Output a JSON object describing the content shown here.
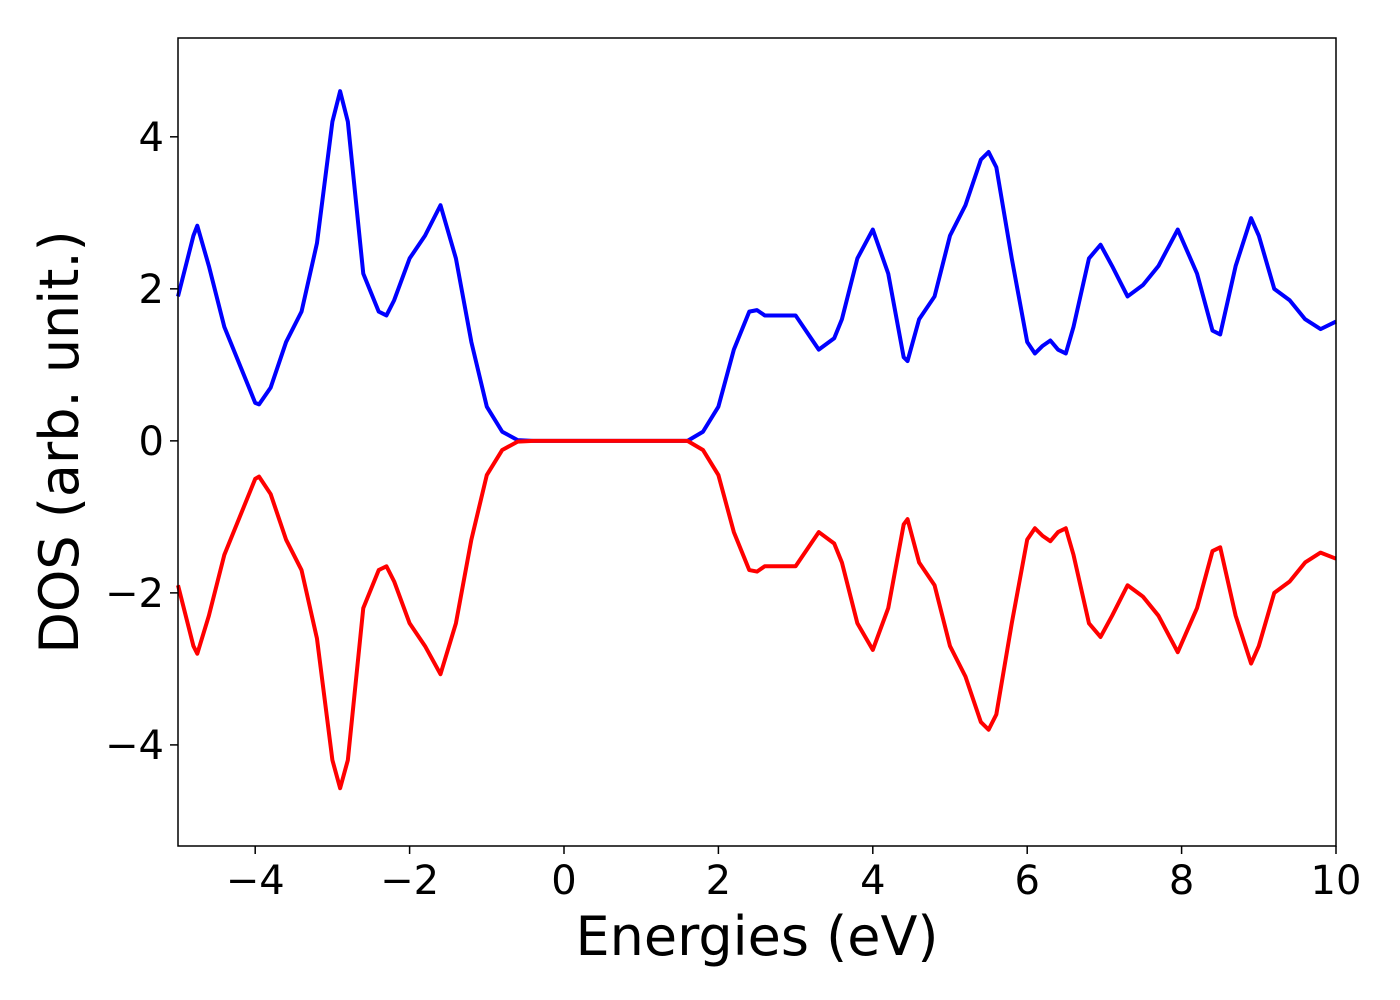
{
  "chart_data": {
    "type": "line",
    "x_label": "Energies (eV)",
    "y_label": "DOS (arb. unit.)",
    "x": [
      -5,
      -4.8,
      -4.75,
      -4.6,
      -4.4,
      -4.2,
      -4.0,
      -3.95,
      -3.8,
      -3.6,
      -3.4,
      -3.2,
      -3.0,
      -2.9,
      -2.8,
      -2.6,
      -2.4,
      -2.3,
      -2.2,
      -2.0,
      -1.8,
      -1.6,
      -1.4,
      -1.2,
      -1.0,
      -0.8,
      -0.6,
      -0.4,
      0,
      0.4,
      0.8,
      1.2,
      1.6,
      1.8,
      2.0,
      2.2,
      2.4,
      2.5,
      2.6,
      2.8,
      3.0,
      3.2,
      3.3,
      3.5,
      3.6,
      3.8,
      4.0,
      4.2,
      4.4,
      4.45,
      4.6,
      4.8,
      5.0,
      5.2,
      5.4,
      5.5,
      5.6,
      5.8,
      6.0,
      6.1,
      6.2,
      6.3,
      6.4,
      6.5,
      6.6,
      6.8,
      6.95,
      7.1,
      7.3,
      7.5,
      7.7,
      7.95,
      8.2,
      8.4,
      8.5,
      8.7,
      8.9,
      9.0,
      9.2,
      9.4,
      9.6,
      9.8,
      10
    ],
    "series": [
      {
        "color": "#0000ff",
        "values": [
          1.9,
          2.7,
          2.83,
          2.3,
          1.5,
          1.0,
          0.5,
          0.48,
          0.7,
          1.3,
          1.7,
          2.6,
          4.2,
          4.6,
          4.2,
          2.2,
          1.7,
          1.65,
          1.85,
          2.4,
          2.7,
          3.1,
          2.4,
          1.3,
          0.45,
          0.12,
          0.01,
          0,
          0,
          0,
          0,
          0,
          0,
          0.12,
          0.45,
          1.2,
          1.7,
          1.72,
          1.65,
          1.65,
          1.65,
          1.35,
          1.2,
          1.35,
          1.6,
          2.4,
          2.78,
          2.2,
          1.1,
          1.05,
          1.6,
          1.9,
          2.7,
          3.1,
          3.7,
          3.8,
          3.6,
          2.4,
          1.3,
          1.15,
          1.25,
          1.32,
          1.2,
          1.15,
          1.5,
          2.4,
          2.58,
          2.3,
          1.9,
          2.05,
          2.3,
          2.78,
          2.2,
          1.45,
          1.4,
          2.3,
          2.93,
          2.7,
          2.0,
          1.85,
          1.6,
          1.47,
          1.57
        ]
      },
      {
        "color": "#ff0000",
        "values": [
          -1.9,
          -2.7,
          -2.8,
          -2.3,
          -1.5,
          -1.0,
          -0.5,
          -0.47,
          -0.7,
          -1.3,
          -1.7,
          -2.6,
          -4.2,
          -4.57,
          -4.2,
          -2.2,
          -1.7,
          -1.65,
          -1.85,
          -2.4,
          -2.7,
          -3.07,
          -2.4,
          -1.3,
          -0.45,
          -0.12,
          -0.01,
          0,
          0,
          0,
          0,
          0,
          0,
          -0.12,
          -0.45,
          -1.2,
          -1.7,
          -1.72,
          -1.65,
          -1.65,
          -1.65,
          -1.35,
          -1.2,
          -1.35,
          -1.6,
          -2.4,
          -2.75,
          -2.2,
          -1.1,
          -1.03,
          -1.6,
          -1.9,
          -2.7,
          -3.1,
          -3.7,
          -3.8,
          -3.6,
          -2.4,
          -1.3,
          -1.15,
          -1.25,
          -1.32,
          -1.2,
          -1.15,
          -1.5,
          -2.4,
          -2.58,
          -2.3,
          -1.9,
          -2.05,
          -2.3,
          -2.78,
          -2.2,
          -1.45,
          -1.4,
          -2.3,
          -2.93,
          -2.7,
          -2.0,
          -1.85,
          -1.6,
          -1.47,
          -1.55
        ]
      }
    ],
    "xlim": [
      -5,
      10
    ],
    "xticks": [
      {
        "value": -4,
        "label": "−4"
      },
      {
        "value": -2,
        "label": "−2"
      },
      0,
      2,
      4,
      6,
      8,
      10
    ],
    "ylim": [
      -5.33,
      5.3
    ],
    "yticks": [
      {
        "value": -4,
        "label": "−4"
      },
      {
        "value": -2,
        "label": "−2"
      },
      0,
      2,
      4
    ],
    "grid": false
  }
}
